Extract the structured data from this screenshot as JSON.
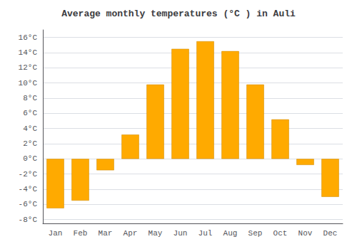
{
  "chart_data": {
    "type": "bar",
    "title": "Average monthly temperatures (°C ) in Auli",
    "categories": [
      "Jan",
      "Feb",
      "Mar",
      "Apr",
      "May",
      "Jun",
      "Jul",
      "Aug",
      "Sep",
      "Oct",
      "Nov",
      "Dec"
    ],
    "values": [
      -6.5,
      -5.5,
      -1.5,
      3.2,
      9.8,
      14.5,
      15.5,
      14.2,
      9.8,
      5.2,
      -0.8,
      -5.0
    ],
    "color": "#FFAA00",
    "ylim": [
      -8.5,
      17
    ],
    "yticks": [
      {
        "value": -8,
        "label": "-8°C"
      },
      {
        "value": -6,
        "label": "-6°C"
      },
      {
        "value": -4,
        "label": "-4°C"
      },
      {
        "value": -2,
        "label": "-2°C"
      },
      {
        "value": 0,
        "label": "0°C"
      },
      {
        "value": 2,
        "label": "2°C"
      },
      {
        "value": 4,
        "label": "4°C"
      },
      {
        "value": 6,
        "label": "6°C"
      },
      {
        "value": 8,
        "label": "8°C"
      },
      {
        "value": 10,
        "label": "10°C"
      },
      {
        "value": 12,
        "label": "12°C"
      },
      {
        "value": 14,
        "label": "14°C"
      },
      {
        "value": 16,
        "label": "16°C"
      }
    ],
    "grid": true
  }
}
